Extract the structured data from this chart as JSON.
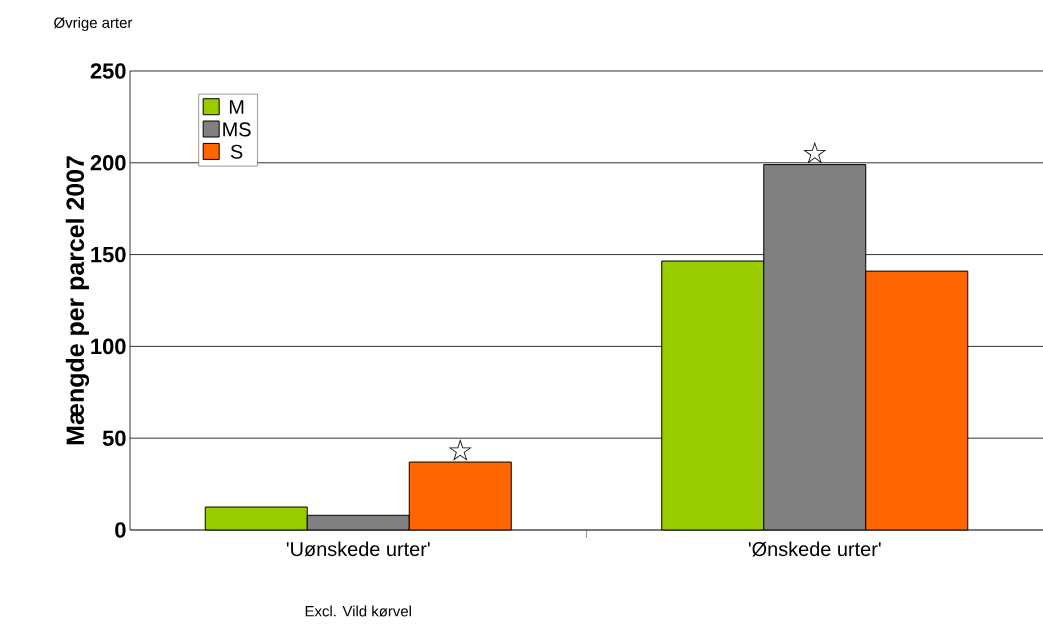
{
  "chart_data": {
    "type": "bar",
    "subtitle": "Øvrige arter",
    "ylabel": "Mængde per parcel 2007",
    "categories": [
      "'Uønskede urter'",
      "'Ønskede urter'"
    ],
    "series": [
      {
        "name": "M",
        "color": "#99cc00",
        "values": [
          12.5,
          146.5
        ]
      },
      {
        "name": "MS",
        "color": "#808080",
        "values": [
          8,
          199
        ]
      },
      {
        "name": "S",
        "color": "#ff6600",
        "values": [
          37,
          141
        ]
      }
    ],
    "ylim": [
      0,
      250
    ],
    "yticks": [
      0,
      50,
      100,
      150,
      200,
      250
    ],
    "grid": "y",
    "legend": "top left",
    "annotations": [
      "Excl. Vild kørvel",
      "☆",
      "☆"
    ]
  }
}
